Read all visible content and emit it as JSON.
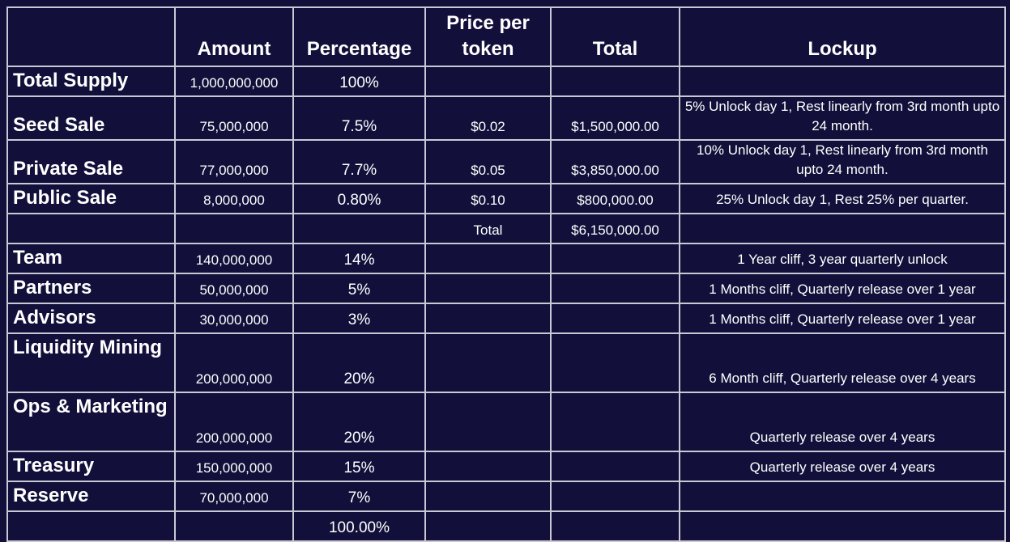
{
  "headers": {
    "blank": "",
    "amount": "Amount",
    "percentage": "Percentage",
    "price": "Price per token",
    "total": "Total",
    "lockup": "Lockup"
  },
  "rows": [
    {
      "label": "Total Supply",
      "amount": "1,000,000,000",
      "percentage": "100%",
      "price": "",
      "total": "",
      "lockup": ""
    },
    {
      "label": "Seed Sale",
      "amount": "75,000,000",
      "percentage": "7.5%",
      "price": "$0.02",
      "total": "$1,500,000.00",
      "lockup": "5% Unlock day 1, Rest  linearly from 3rd month upto 24 month."
    },
    {
      "label": "Private Sale",
      "amount": "77,000,000",
      "percentage": "7.7%",
      "price": "$0.05",
      "total": "$3,850,000.00",
      "lockup": "10% Unlock day 1, Rest linearly from 3rd month upto 24 month."
    },
    {
      "label": "Public Sale",
      "amount": "8,000,000",
      "percentage": "0.80%",
      "price": "$0.10",
      "total": "$800,000.00",
      "lockup": "25% Unlock day 1, Rest 25% per quarter."
    },
    {
      "label": "",
      "amount": "",
      "percentage": "",
      "price": "Total",
      "total": "$6,150,000.00",
      "lockup": ""
    },
    {
      "label": "Team",
      "amount": "140,000,000",
      "percentage": "14%",
      "price": "",
      "total": "",
      "lockup": "1 Year cliff, 3 year quarterly unlock"
    },
    {
      "label": "Partners",
      "amount": "50,000,000",
      "percentage": "5%",
      "price": "",
      "total": "",
      "lockup": "1 Months cliff, Quarterly release over 1 year"
    },
    {
      "label": "Advisors",
      "amount": "30,000,000",
      "percentage": "3%",
      "price": "",
      "total": "",
      "lockup": "1 Months cliff, Quarterly release over 1 year"
    },
    {
      "label": "Liquidity Mining",
      "amount": "200,000,000",
      "percentage": "20%",
      "price": "",
      "total": "",
      "lockup": "6 Month cliff, Quarterly release over 4 years"
    },
    {
      "label": "Ops & Marketing",
      "amount": "200,000,000",
      "percentage": "20%",
      "price": "",
      "total": "",
      "lockup": "Quarterly release over 4 years"
    },
    {
      "label": "Treasury",
      "amount": "150,000,000",
      "percentage": "15%",
      "price": "",
      "total": "",
      "lockup": "Quarterly release over 4 years"
    },
    {
      "label": "Reserve",
      "amount": "70,000,000",
      "percentage": "7%",
      "price": "",
      "total": "",
      "lockup": ""
    },
    {
      "label": "",
      "amount": "",
      "percentage": "100.00%",
      "price": "",
      "total": "",
      "lockup": ""
    }
  ]
}
